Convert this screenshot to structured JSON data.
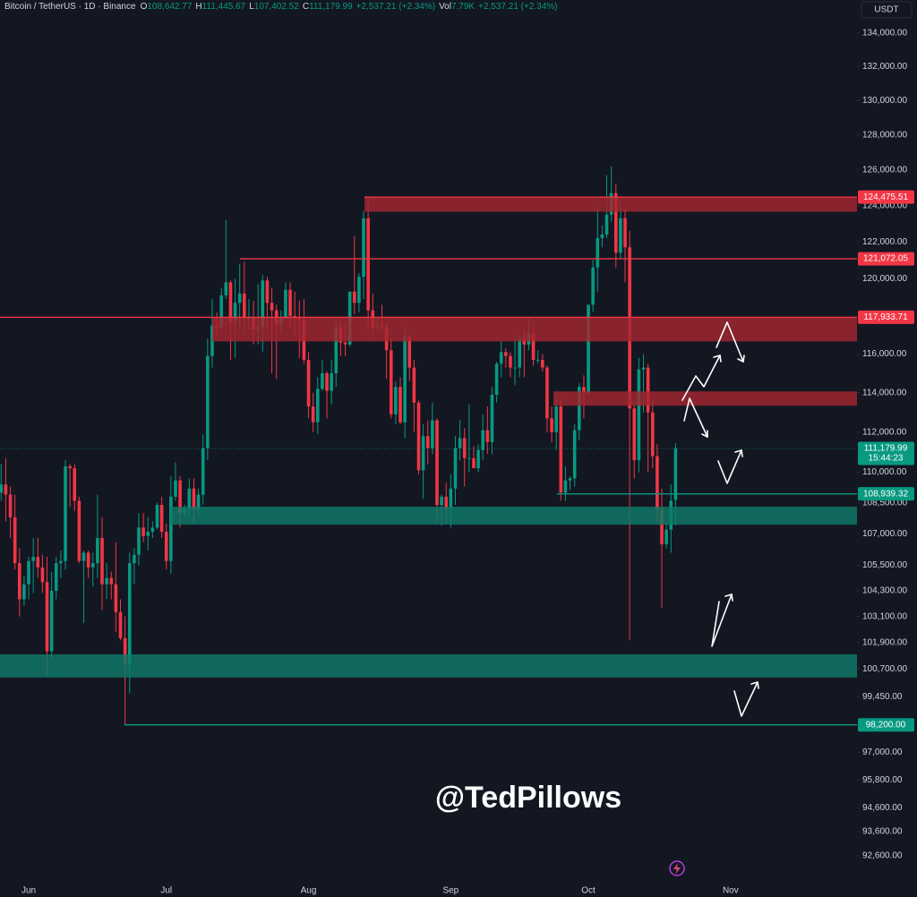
{
  "chart_data": {
    "type": "candlestick",
    "title": "Bitcoin / TetherUS · 1D · Binance",
    "header_fields": [
      {
        "key": "O",
        "value": "108,642.77"
      },
      {
        "key": "H",
        "value": "111,445.67"
      },
      {
        "key": "L",
        "value": "107,402.52"
      },
      {
        "key": "C",
        "value": "111,179.99"
      },
      {
        "value": "+2,537.21 (+2.34%)"
      },
      {
        "key": "Vol",
        "value": "7.79K"
      },
      {
        "value": "+2,537.21 (+2.34%)"
      }
    ],
    "currency": "USDT",
    "watermark": "@TedPillows",
    "log_scale": true,
    "grid": false,
    "up_color": "#089981",
    "down_color": "#f23645",
    "ylim": [
      91700,
      136000
    ],
    "yticks": [
      {
        "value": 134000,
        "label": "134,000.00"
      },
      {
        "value": 132000,
        "label": "132,000.00"
      },
      {
        "value": 130000,
        "label": "130,000.00"
      },
      {
        "value": 128000,
        "label": "128,000.00"
      },
      {
        "value": 126000,
        "label": "126,000.00"
      },
      {
        "value": 124000,
        "label": "124,000.00"
      },
      {
        "value": 122000,
        "label": "122,000.00"
      },
      {
        "value": 120000,
        "label": "120,000.00"
      },
      {
        "value": 116000,
        "label": "116,000.00"
      },
      {
        "value": 114000,
        "label": "114,000.00"
      },
      {
        "value": 112000,
        "label": "112,000.00"
      },
      {
        "value": 110000,
        "label": "110,000.00"
      },
      {
        "value": 108500,
        "label": "108,500.00"
      },
      {
        "value": 107000,
        "label": "107,000.00"
      },
      {
        "value": 105500,
        "label": "105,500.00"
      },
      {
        "value": 104300,
        "label": "104,300.00"
      },
      {
        "value": 103100,
        "label": "103,100.00"
      },
      {
        "value": 101900,
        "label": "101,900.00"
      },
      {
        "value": 100700,
        "label": "100,700.00"
      },
      {
        "value": 99450,
        "label": "99,450.00"
      },
      {
        "value": 98200,
        "label": "98,200.00"
      },
      {
        "value": 97000,
        "label": "97,000.00"
      },
      {
        "value": 95800,
        "label": "95,800.00"
      },
      {
        "value": 94600,
        "label": "94,600.00"
      },
      {
        "value": 93600,
        "label": "93,600.00"
      },
      {
        "value": 92600,
        "label": "92,600.00"
      }
    ],
    "categories": [
      null,
      null,
      null,
      null,
      null,
      null,
      "Jun",
      null,
      null,
      null,
      null,
      null,
      null,
      null,
      null,
      null,
      null,
      null,
      null,
      null,
      null,
      null,
      null,
      null,
      null,
      null,
      null,
      null,
      null,
      null,
      null,
      null,
      null,
      null,
      null,
      null,
      "Jul",
      null,
      null,
      null,
      null,
      null,
      null,
      null,
      null,
      null,
      null,
      null,
      null,
      null,
      null,
      null,
      null,
      null,
      null,
      null,
      null,
      null,
      null,
      null,
      null,
      null,
      null,
      null,
      null,
      null,
      null,
      "Aug",
      null,
      null,
      null,
      null,
      null,
      null,
      null,
      null,
      null,
      null,
      null,
      null,
      null,
      null,
      null,
      null,
      null,
      null,
      null,
      null,
      null,
      null,
      null,
      null,
      null,
      null,
      null,
      null,
      null,
      null,
      "Sep",
      null,
      null,
      null,
      null,
      null,
      null,
      null,
      null,
      null,
      null,
      null,
      null,
      null,
      null,
      null,
      null,
      null,
      null,
      null,
      null,
      null,
      null,
      null,
      null,
      null,
      null,
      null,
      null,
      null,
      "Oct",
      null,
      null,
      null,
      null,
      null,
      null,
      null,
      null,
      null,
      null,
      null,
      null,
      null,
      null,
      null,
      null,
      null,
      null,
      null,
      null,
      null,
      null,
      null,
      null,
      null,
      null,
      null,
      null,
      null,
      null,
      "Nov"
    ],
    "ohlc": [
      [
        109000,
        110400,
        108600,
        109400
      ],
      [
        109400,
        110700,
        107600,
        108900
      ],
      [
        108900,
        109300,
        106800,
        107800
      ],
      [
        107800,
        108900,
        105300,
        105600
      ],
      [
        105600,
        106300,
        103100,
        103900
      ],
      [
        103900,
        105000,
        103600,
        104600
      ],
      [
        104600,
        105900,
        103900,
        105700
      ],
      [
        105700,
        106800,
        104200,
        105900
      ],
      [
        105900,
        106800,
        104900,
        105400
      ],
      [
        105400,
        106000,
        104200,
        104700
      ],
      [
        104700,
        105900,
        100400,
        101500
      ],
      [
        101500,
        105200,
        101100,
        104300
      ],
      [
        104300,
        105900,
        103900,
        105600
      ],
      [
        105600,
        106200,
        104900,
        105700
      ],
      [
        105700,
        110600,
        105300,
        110300
      ],
      [
        110300,
        110400,
        108300,
        110200
      ],
      [
        110200,
        110400,
        108100,
        108600
      ],
      [
        108600,
        108800,
        105600,
        105700
      ],
      [
        105700,
        106200,
        102800,
        106100
      ],
      [
        106100,
        106200,
        104900,
        105400
      ],
      [
        105400,
        106100,
        104500,
        105600
      ],
      [
        105600,
        108900,
        104900,
        106800
      ],
      [
        106800,
        107800,
        103400,
        104600
      ],
      [
        104600,
        105600,
        103900,
        104900
      ],
      [
        104900,
        105200,
        103900,
        104600
      ],
      [
        104600,
        106600,
        102400,
        103300
      ],
      [
        103300,
        103900,
        102000,
        102100
      ],
      [
        102100,
        103100,
        98200,
        100900
      ],
      [
        100900,
        106100,
        99600,
        105600
      ],
      [
        105600,
        106300,
        104600,
        106000
      ],
      [
        106000,
        108000,
        105500,
        107300
      ],
      [
        107300,
        108000,
        106600,
        106900
      ],
      [
        106900,
        107800,
        106200,
        107100
      ],
      [
        107100,
        107600,
        106800,
        107300
      ],
      [
        107300,
        108500,
        107200,
        108400
      ],
      [
        108400,
        108800,
        106800,
        107100
      ],
      [
        107100,
        107500,
        105300,
        105700
      ],
      [
        105700,
        109800,
        105100,
        108800
      ],
      [
        108800,
        110500,
        108600,
        109600
      ],
      [
        109600,
        109800,
        107300,
        108000
      ],
      [
        108000,
        108400,
        107800,
        108200
      ],
      [
        108200,
        109700,
        107800,
        109200
      ],
      [
        109200,
        109700,
        107500,
        108200
      ],
      [
        108200,
        109200,
        107900,
        108900
      ],
      [
        108900,
        111900,
        108400,
        111200
      ],
      [
        111200,
        116800,
        110600,
        115900
      ],
      [
        115900,
        118900,
        115300,
        117500
      ],
      [
        117500,
        118200,
        116900,
        117400
      ],
      [
        117400,
        119500,
        117300,
        119100
      ],
      [
        119100,
        123200,
        118900,
        119800
      ],
      [
        119800,
        119900,
        115700,
        117700
      ],
      [
        117700,
        120000,
        115800,
        118700
      ],
      [
        118700,
        120800,
        117400,
        119200
      ],
      [
        119200,
        120900,
        117200,
        117900
      ],
      [
        117900,
        118900,
        117300,
        117900
      ],
      [
        117900,
        118800,
        116500,
        117300
      ],
      [
        117300,
        119700,
        116500,
        117400
      ],
      [
        117400,
        120200,
        116100,
        119900
      ],
      [
        119900,
        120100,
        117300,
        118700
      ],
      [
        118700,
        119500,
        115000,
        118300
      ],
      [
        118300,
        118600,
        114700,
        117600
      ],
      [
        117600,
        118300,
        117100,
        117900
      ],
      [
        117900,
        119800,
        117800,
        119400
      ],
      [
        119400,
        119800,
        117400,
        118000
      ],
      [
        118000,
        119300,
        116900,
        117900
      ],
      [
        117900,
        118800,
        115800,
        117800
      ],
      [
        117800,
        118900,
        115500,
        115700
      ],
      [
        115700,
        116100,
        112700,
        113300
      ],
      [
        113300,
        114000,
        112000,
        112500
      ],
      [
        112500,
        114800,
        111900,
        114200
      ],
      [
        114200,
        115700,
        114100,
        115000
      ],
      [
        115000,
        115100,
        112700,
        114100
      ],
      [
        114100,
        115700,
        113400,
        115000
      ],
      [
        115000,
        117700,
        114300,
        117400
      ],
      [
        117400,
        117900,
        115900,
        116600
      ],
      [
        116600,
        117600,
        115900,
        116500
      ],
      [
        116500,
        119300,
        116400,
        119300
      ],
      [
        119300,
        122300,
        118100,
        118700
      ],
      [
        118700,
        120300,
        118200,
        120100
      ],
      [
        120100,
        123700,
        118900,
        123300
      ],
      [
        123300,
        124500,
        117200,
        118300
      ],
      [
        118300,
        119200,
        116800,
        117400
      ],
      [
        117400,
        117900,
        117200,
        117500
      ],
      [
        117500,
        118600,
        117200,
        117400
      ],
      [
        117400,
        117600,
        114700,
        116200
      ],
      [
        116200,
        116800,
        112700,
        112900
      ],
      [
        112900,
        114600,
        112400,
        114300
      ],
      [
        114300,
        114800,
        112400,
        112500
      ],
      [
        112500,
        117400,
        111700,
        116900
      ],
      [
        116900,
        117000,
        114600,
        115300
      ],
      [
        115300,
        115700,
        112000,
        113500
      ],
      [
        113500,
        113600,
        109900,
        110100
      ],
      [
        110100,
        112400,
        108700,
        111800
      ],
      [
        111800,
        112600,
        110400,
        111200
      ],
      [
        111200,
        113500,
        110900,
        112600
      ],
      [
        112600,
        112700,
        107500,
        108400
      ],
      [
        108400,
        108900,
        107400,
        108800
      ],
      [
        108800,
        109500,
        107500,
        108200
      ],
      [
        108200,
        109900,
        107300,
        109200
      ],
      [
        109200,
        111800,
        108400,
        111200
      ],
      [
        111200,
        112600,
        110600,
        111700
      ],
      [
        111700,
        112200,
        109300,
        110700
      ],
      [
        110700,
        113400,
        110000,
        110700
      ],
      [
        110700,
        111300,
        110200,
        110200
      ],
      [
        110200,
        111400,
        110000,
        111100
      ],
      [
        111100,
        112900,
        110600,
        112100
      ],
      [
        112100,
        113300,
        110900,
        111500
      ],
      [
        111500,
        114300,
        110900,
        113900
      ],
      [
        113900,
        115600,
        113500,
        115500
      ],
      [
        115500,
        116700,
        114800,
        116100
      ],
      [
        116100,
        116300,
        115300,
        115900
      ],
      [
        115900,
        116100,
        114800,
        115300
      ],
      [
        115300,
        116800,
        114400,
        115300
      ],
      [
        115300,
        117000,
        114800,
        116800
      ],
      [
        116800,
        117300,
        114800,
        116500
      ],
      [
        116500,
        117900,
        116200,
        117100
      ],
      [
        117100,
        117500,
        115400,
        115700
      ],
      [
        115700,
        116200,
        115500,
        115700
      ],
      [
        115700,
        116000,
        115100,
        115300
      ],
      [
        115300,
        115400,
        112000,
        112700
      ],
      [
        112700,
        113300,
        111500,
        112000
      ],
      [
        112000,
        113900,
        111100,
        113300
      ],
      [
        113300,
        113700,
        108600,
        109000
      ],
      [
        109000,
        110300,
        108600,
        109600
      ],
      [
        109600,
        109800,
        109100,
        109700
      ],
      [
        109700,
        112400,
        109300,
        112100
      ],
      [
        112100,
        114500,
        111600,
        114300
      ],
      [
        114300,
        114900,
        112700,
        114000
      ],
      [
        114000,
        118600,
        113900,
        118600
      ],
      [
        118600,
        121000,
        118200,
        120600
      ],
      [
        120600,
        123900,
        119300,
        122200
      ],
      [
        122200,
        122900,
        121700,
        122400
      ],
      [
        122400,
        125700,
        122200,
        123500
      ],
      [
        123500,
        126200,
        123100,
        124700
      ],
      [
        124700,
        125200,
        120600,
        121400
      ],
      [
        121400,
        124200,
        121100,
        123300
      ],
      [
        123300,
        123800,
        119800,
        121700
      ],
      [
        121700,
        122600,
        102000,
        113200
      ],
      [
        113200,
        113500,
        109700,
        110600
      ],
      [
        110600,
        115800,
        110000,
        115200
      ],
      [
        115200,
        116000,
        113000,
        115300
      ],
      [
        115300,
        115500,
        110000,
        113000
      ],
      [
        113000,
        113600,
        110200,
        110800
      ],
      [
        110800,
        111400,
        107500,
        108200
      ],
      [
        108200,
        109200,
        103500,
        106500
      ],
      [
        106500,
        107500,
        106300,
        107200
      ],
      [
        107200,
        109400,
        106100,
        108600
      ],
      [
        108642.77,
        111445.67,
        107402.52,
        111179.99
      ],
      null,
      null,
      null,
      null,
      null,
      null,
      null,
      null,
      null,
      null,
      null,
      null
    ],
    "zones": [
      {
        "low": 123660,
        "high": 124475.51,
        "color": "#a3262f"
      },
      {
        "low": 116660,
        "high": 117933.71,
        "color": "#a3262f"
      },
      {
        "low": 113340,
        "high": 114070,
        "color": "#a3262f"
      },
      {
        "low": 107440,
        "high": 108310,
        "color": "#0f7a68"
      },
      {
        "low": 100310,
        "high": 101360,
        "color": "#0f7a68"
      }
    ],
    "levels": [
      {
        "value": 124475.51,
        "label": "124,475.51",
        "color": "#f23645"
      },
      {
        "value": 121072.05,
        "label": "121,072.05",
        "color": "#f23645"
      },
      {
        "value": 117933.71,
        "label": "117,933.71",
        "color": "#f23645"
      },
      {
        "value": 111179.99,
        "label": "111,179.99",
        "color": "#089981",
        "countdown": "15:44:23"
      },
      {
        "value": 108939.32,
        "label": "108,939.32",
        "color": "#089981"
      },
      {
        "value": 98200.0,
        "label": "98,200.00",
        "color": "#089981"
      }
    ]
  }
}
